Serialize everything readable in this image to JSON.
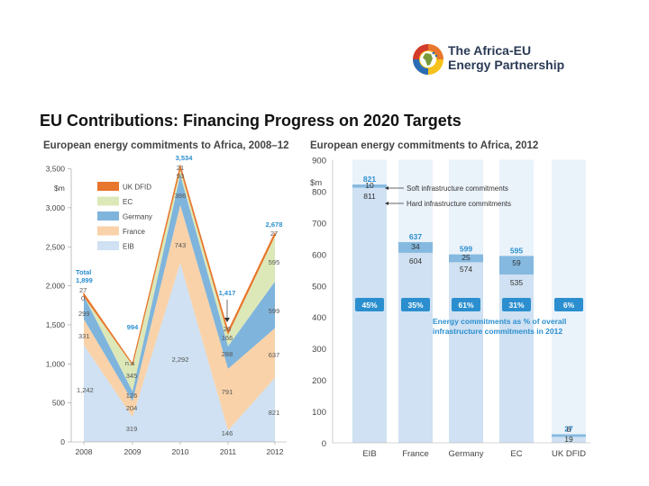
{
  "logo": {
    "line1": "The Africa-EU",
    "line2": "Energy Partnership",
    "emblem": "africa-eu-emblem-icon"
  },
  "slide_title": "EU Contributions: Financing Progress on 2020 Targets",
  "colors": {
    "eib": "#cfe1f2",
    "france": "#f9d2a9",
    "germany": "#7fb4dc",
    "ec": "#dde8b9",
    "ukdfid": "#e8762c",
    "hard": "#cfe1f2",
    "soft": "#85b9e0",
    "highlight": "#2b8fcf",
    "axis_text": "#444444"
  },
  "chart_data": [
    {
      "type": "area",
      "title": "European energy commitments to Africa, 2008–12",
      "unit_label": "$m",
      "x": [
        "2008",
        "2009",
        "2010",
        "2011",
        "2012"
      ],
      "ylim": [
        0,
        3500
      ],
      "yticks": [
        "0",
        "500",
        "1,000",
        "1,500",
        "2,000",
        "2,500",
        "3,000",
        "3,500"
      ],
      "legend_position": "upper-left",
      "series": [
        {
          "name": "EIB",
          "values": [
            1242,
            319,
            2292,
            146,
            821
          ]
        },
        {
          "name": "France",
          "values": [
            331,
            204,
            743,
            791,
            637
          ]
        },
        {
          "name": "Germany",
          "values": [
            299,
            126,
            386,
            288,
            599
          ]
        },
        {
          "name": "EC",
          "values": [
            0,
            345,
            93,
            166,
            595
          ]
        },
        {
          "name": "UK DFID",
          "values": [
            27,
            0,
            21,
            26,
            27
          ]
        }
      ],
      "totals": [
        1899,
        994,
        3534,
        1417,
        2678
      ],
      "annotations": {
        "total_label": "Total",
        "total_2008": "1,899",
        "total_2009": "994",
        "total_2010": "3,534",
        "total_2011": "1,417",
        "total_2012": "2,678",
        "v2008_dfid": "27",
        "v2008_ec": "0",
        "v2008_ger": "299",
        "v2008_fr": "331",
        "v2008_eib": "1,242",
        "v2009_ec": "345",
        "v2009_dfid": "n.a",
        "v2009_ger": "126",
        "v2009_fr": "204",
        "v2009_eib": "319",
        "v2010_dfid": "21",
        "v2010_ec": "93",
        "v2010_ger": "386",
        "v2010_fr": "743",
        "v2010_eib": "2,292",
        "v2011_dfid": "26",
        "v2011_ec": "166",
        "v2011_ger": "288",
        "v2011_fr": "791",
        "v2011_eib": "146",
        "v2012_dfid": "27",
        "v2012_ec": "595",
        "v2012_ger": "599",
        "v2012_fr": "637",
        "v2012_eib": "821"
      }
    },
    {
      "type": "bar",
      "title": "European energy commitments to Africa, 2012",
      "unit_label": "$m",
      "categories": [
        "EIB",
        "France",
        "Germany",
        "EC",
        "UK DFID"
      ],
      "ylim": [
        0,
        900
      ],
      "yticks": [
        "0",
        "100",
        "200",
        "300",
        "400",
        "500",
        "600",
        "700",
        "800",
        "900"
      ],
      "series": [
        {
          "name": "Hard infrastructure commitments",
          "values": [
            811,
            604,
            574,
            535,
            19
          ]
        },
        {
          "name": "Soft infrastructure commitments",
          "values": [
            10,
            34,
            25,
            59,
            8
          ]
        }
      ],
      "totals": [
        821,
        637,
        599,
        595,
        27
      ],
      "totals_text": [
        "821",
        "637",
        "599",
        "595",
        "27"
      ],
      "hard_text": [
        "811",
        "604",
        "574",
        "535",
        "19"
      ],
      "soft_text": [
        "10",
        "34",
        "25",
        "59",
        "8"
      ],
      "percent_share": [
        "45%",
        "35%",
        "61%",
        "31%",
        "6%"
      ],
      "percent_note": [
        "Energy commitments as % of overall",
        "infrastructure commitments in 2012"
      ],
      "callout_soft": "Soft infrastructure commitments",
      "callout_hard": "Hard infrastructure commitments"
    }
  ]
}
